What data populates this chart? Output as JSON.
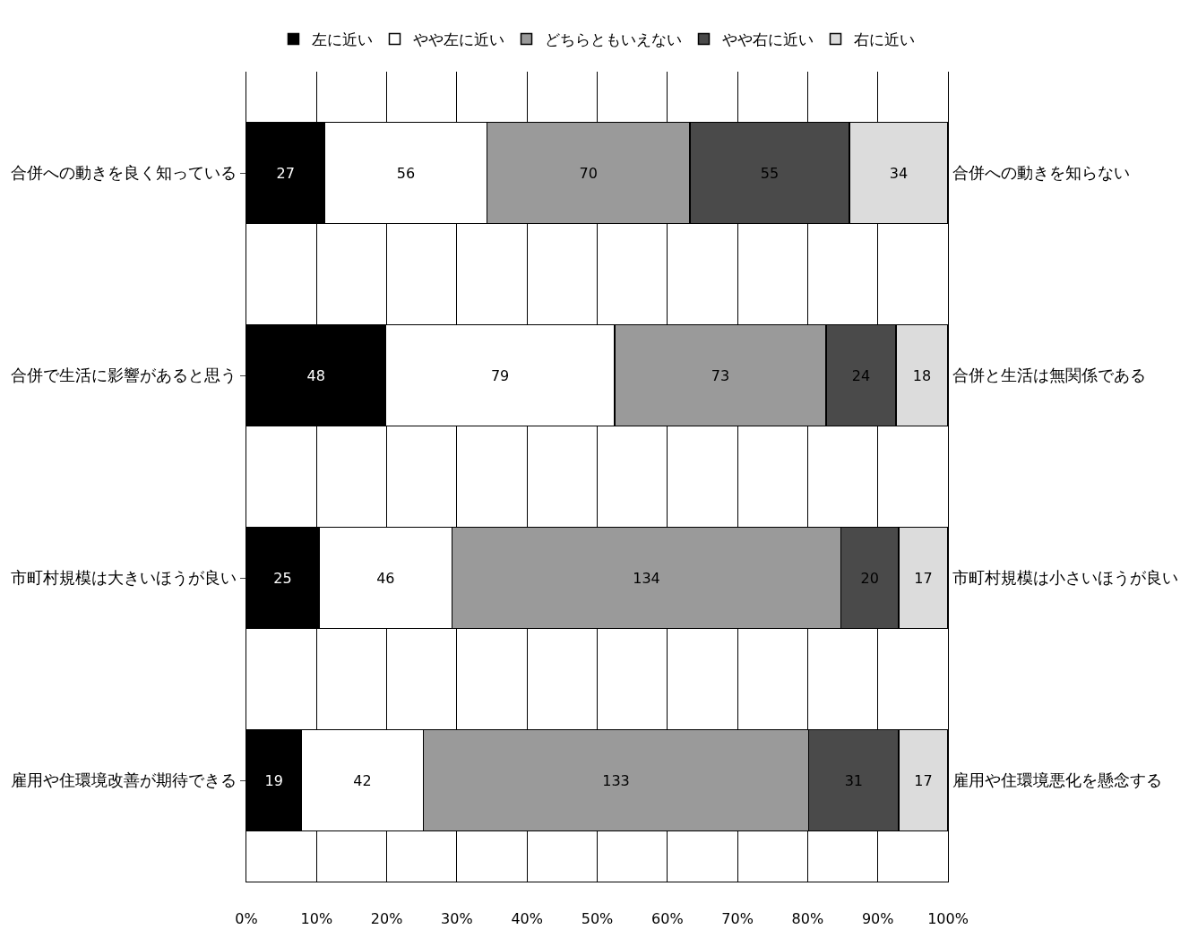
{
  "chart_data": {
    "type": "bar",
    "orientation": "horizontal",
    "stacked": true,
    "categories": [
      "合併への動きを良く知っている",
      "合併で生活に影響があると思う",
      "市町村規模は大きいほうが良い",
      "雇用や住環境改善が期待できる"
    ],
    "y2_categories": [
      "合併への動きを知らない",
      "合併と生活は無関係である",
      "市町村規模は小さいほうが良い",
      "雇用や住環境悪化を懸念する"
    ],
    "series": [
      {
        "name": "左に近い",
        "color": "#000000",
        "values": [
          27,
          48,
          25,
          19
        ]
      },
      {
        "name": "やや左に近い",
        "color": "#ffffff",
        "values": [
          56,
          79,
          46,
          42
        ]
      },
      {
        "name": "どちらともいえない",
        "color": "#9a9a9a",
        "values": [
          70,
          73,
          134,
          133
        ]
      },
      {
        "name": "やや右に近い",
        "color": "#4a4a4a",
        "values": [
          55,
          24,
          20,
          31
        ]
      },
      {
        "name": "右に近い",
        "color": "#dcdcdc",
        "values": [
          34,
          18,
          17,
          17
        ]
      }
    ],
    "data_labels": true,
    "xlim": [
      0,
      242
    ],
    "x2lim": [
      0,
      100
    ],
    "x2ticks": [
      {
        "value": 0,
        "label": "0%"
      },
      {
        "value": 10,
        "label": "10%"
      },
      {
        "value": 20,
        "label": "20%"
      },
      {
        "value": 30,
        "label": "30%"
      },
      {
        "value": 40,
        "label": "40%"
      },
      {
        "value": 50,
        "label": "50%"
      },
      {
        "value": 60,
        "label": "60%"
      },
      {
        "value": 70,
        "label": "70%"
      },
      {
        "value": 80,
        "label": "80%"
      },
      {
        "value": 90,
        "label": "90%"
      },
      {
        "value": 100,
        "label": "100%"
      }
    ],
    "grid": "x",
    "legend": "top"
  }
}
